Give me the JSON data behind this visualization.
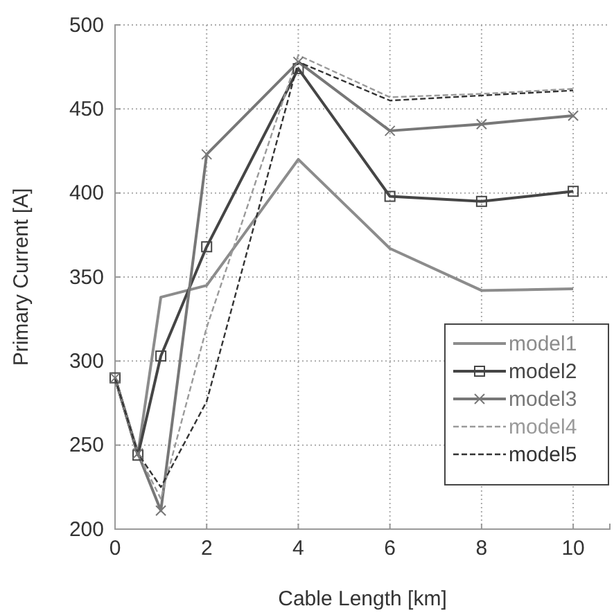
{
  "chart_data": {
    "type": "line",
    "xlabel": "Cable Length [km]",
    "ylabel": "Primary Current [A]",
    "x": [
      0,
      0.5,
      1,
      2,
      4,
      6,
      8,
      10
    ],
    "series": [
      {
        "name": "model1",
        "color": "#8c8c8c",
        "line_style": "solid",
        "marker": "none",
        "values": [
          290,
          245,
          338,
          345,
          420,
          367,
          342,
          343
        ]
      },
      {
        "name": "model2",
        "color": "#454545",
        "line_style": "solid",
        "marker": "square",
        "values": [
          290,
          244,
          303,
          368,
          474,
          398,
          395,
          401
        ]
      },
      {
        "name": "model3",
        "color": "#777777",
        "line_style": "solid",
        "marker": "cross",
        "values": [
          290,
          245,
          211,
          423,
          478,
          437,
          441,
          446
        ]
      },
      {
        "name": "model4",
        "color": "#9a9a9a",
        "line_style": "dashed",
        "marker": "none",
        "values": [
          290,
          245,
          218,
          320,
          482,
          457,
          459,
          462
        ]
      },
      {
        "name": "model5",
        "color": "#333333",
        "line_style": "dashed",
        "marker": "none",
        "values": [
          290,
          245,
          225,
          276,
          478,
          455,
          458,
          461
        ]
      }
    ],
    "xlim": [
      0,
      10.8
    ],
    "xticks": [
      0,
      2,
      4,
      6,
      8,
      10
    ],
    "ylim": [
      200,
      500
    ],
    "yticks": [
      200,
      250,
      300,
      350,
      400,
      450,
      500
    ],
    "grid": true,
    "legend": "bottom right"
  }
}
